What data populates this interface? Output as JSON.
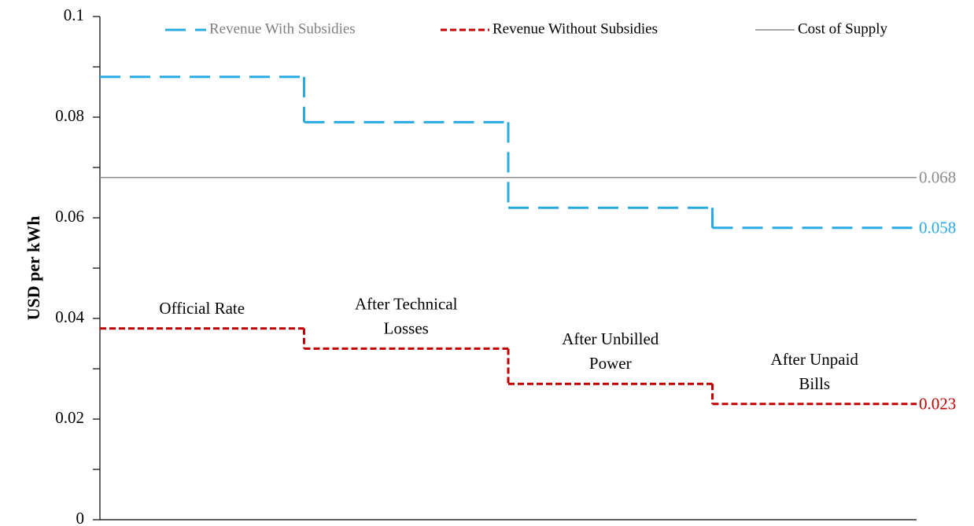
{
  "chart_data": {
    "type": "step",
    "ylabel": "USD per kWh",
    "categories": [
      "Official Rate",
      "After Technical Losses",
      "After Unbilled Power",
      "After Unpaid Bills"
    ],
    "series": [
      {
        "name": "Revenue With Subsidies",
        "color": "#29abe2",
        "values": [
          0.088,
          0.079,
          0.062,
          0.058
        ]
      },
      {
        "name": "Revenue Without Subsidies",
        "color": "#c00000",
        "values": [
          0.038,
          0.034,
          0.027,
          0.023
        ]
      },
      {
        "name": "Cost of Supply",
        "color": "#8c8c8c",
        "values": [
          0.068,
          0.068,
          0.068,
          0.068
        ]
      }
    ],
    "ylim": [
      0,
      0.1
    ],
    "yticks": [
      0,
      0.02,
      0.04,
      0.06,
      0.08,
      0.1
    ],
    "yminorticks": [
      0.01,
      0.03,
      0.05,
      0.07,
      0.09
    ],
    "legend": "top"
  }
}
